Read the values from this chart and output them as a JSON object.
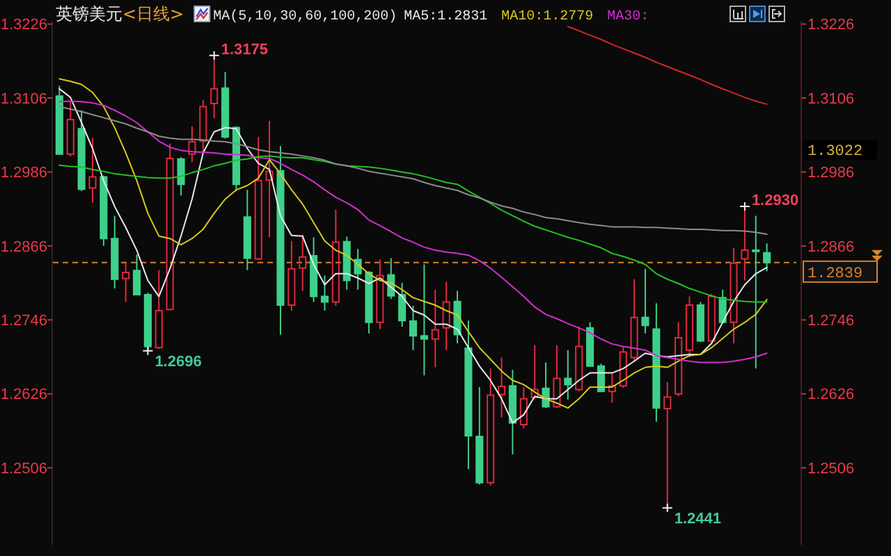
{
  "chart_data": {
    "type": "candlestick",
    "title": "英镑美元",
    "subtitle": "<日线>",
    "legend_title": "MA(5,10,30,60,100,200)",
    "legend": "top",
    "categories": [
      null,
      null,
      null,
      null,
      null,
      null,
      null,
      null,
      null,
      null,
      null,
      null,
      null,
      null,
      null,
      null,
      null,
      null,
      null,
      null,
      null,
      null,
      null,
      null,
      null,
      null,
      null,
      null,
      null,
      null,
      null,
      null,
      null,
      null,
      null,
      null,
      null,
      null,
      null,
      null,
      null,
      null,
      null,
      null,
      null,
      null,
      null,
      null,
      null,
      null,
      null,
      null,
      null,
      null,
      null,
      null,
      null,
      null,
      null,
      null,
      null,
      null,
      null,
      null,
      null
    ],
    "ohlc": [
      [
        1.3109,
        1.3126,
        1.3015,
        1.3015
      ],
      [
        1.3015,
        1.31,
        1.3011,
        1.3071
      ],
      [
        1.3056,
        1.3086,
        1.2955,
        1.2958
      ],
      [
        1.296,
        1.3041,
        1.2936,
        1.2978
      ],
      [
        1.2978,
        1.298,
        1.2866,
        1.2878
      ],
      [
        1.2878,
        1.2915,
        1.2797,
        1.2812
      ],
      [
        1.2813,
        1.2838,
        1.2775,
        1.2823
      ],
      [
        1.2826,
        1.2852,
        1.2787,
        1.2787
      ],
      [
        1.2787,
        1.279,
        1.2696,
        1.2703
      ],
      [
        1.2701,
        1.2827,
        1.2699,
        1.2761
      ],
      [
        1.2763,
        1.3032,
        1.2763,
        1.3008
      ],
      [
        1.3007,
        1.301,
        1.2948,
        1.2966
      ],
      [
        1.3015,
        1.306,
        1.3002,
        1.3035
      ],
      [
        1.3036,
        1.3103,
        1.3017,
        1.3092
      ],
      [
        1.3097,
        1.3175,
        1.3073,
        1.3121
      ],
      [
        1.3122,
        1.3148,
        1.304,
        1.3043
      ],
      [
        1.3058,
        1.306,
        1.2955,
        1.2966
      ],
      [
        1.2913,
        1.2957,
        1.2827,
        1.2846
      ],
      [
        1.2845,
        1.3043,
        1.2843,
        1.2972
      ],
      [
        1.2973,
        1.3069,
        1.288,
        1.2987
      ],
      [
        1.2988,
        1.3028,
        1.2722,
        1.277
      ],
      [
        1.277,
        1.2874,
        1.2761,
        1.2829
      ],
      [
        1.283,
        1.2884,
        1.2793,
        1.2848
      ],
      [
        1.285,
        1.288,
        1.2775,
        1.2784
      ],
      [
        1.2784,
        1.2818,
        1.2761,
        1.2775
      ],
      [
        1.2775,
        1.2925,
        1.2769,
        1.2872
      ],
      [
        1.2873,
        1.2881,
        1.2795,
        1.281
      ],
      [
        1.2844,
        1.2861,
        1.2795,
        1.2821
      ],
      [
        1.2823,
        1.2825,
        1.2724,
        1.2742
      ],
      [
        1.2742,
        1.2844,
        1.2731,
        1.2818
      ],
      [
        1.2819,
        1.2846,
        1.278,
        1.2785
      ],
      [
        1.2787,
        1.2806,
        1.2735,
        1.2745
      ],
      [
        1.2744,
        1.2769,
        1.2697,
        1.272
      ],
      [
        1.272,
        1.2836,
        1.2656,
        1.2715
      ],
      [
        1.2715,
        1.2795,
        1.2669,
        1.273
      ],
      [
        1.2733,
        1.2808,
        1.2697,
        1.2775
      ],
      [
        1.2776,
        1.2793,
        1.2708,
        1.2722
      ],
      [
        1.27,
        1.2745,
        1.2504,
        1.2558
      ],
      [
        1.2557,
        1.2637,
        1.2479,
        1.2482
      ],
      [
        1.2482,
        1.2667,
        1.2477,
        1.2624
      ],
      [
        1.2625,
        1.2685,
        1.2588,
        1.2638
      ],
      [
        1.2639,
        1.2665,
        1.2528,
        1.2579
      ],
      [
        1.2576,
        1.2637,
        1.257,
        1.2618
      ],
      [
        1.262,
        1.2705,
        1.2618,
        1.2633
      ],
      [
        1.2635,
        1.2677,
        1.2603,
        1.2605
      ],
      [
        1.2605,
        1.2705,
        1.2603,
        1.2651
      ],
      [
        1.2651,
        1.2697,
        1.2617,
        1.2641
      ],
      [
        1.2633,
        1.2735,
        1.263,
        1.2703
      ],
      [
        1.2733,
        1.2742,
        1.267,
        1.2671
      ],
      [
        1.2671,
        1.2675,
        1.263,
        1.263
      ],
      [
        1.263,
        1.266,
        1.2612,
        1.2639
      ],
      [
        1.2639,
        1.2703,
        1.2636,
        1.2694
      ],
      [
        1.2685,
        1.2812,
        1.2679,
        1.275
      ],
      [
        1.275,
        1.2829,
        1.2724,
        1.2737
      ],
      [
        1.2731,
        1.2773,
        1.2581,
        1.2603
      ],
      [
        1.2602,
        1.2645,
        1.2441,
        1.2621
      ],
      [
        1.2626,
        1.2742,
        1.2622,
        1.2717
      ],
      [
        1.2697,
        1.2784,
        1.2686,
        1.277
      ],
      [
        1.277,
        1.2775,
        1.271,
        1.2712
      ],
      [
        1.2712,
        1.2788,
        1.2708,
        1.2784
      ],
      [
        1.2782,
        1.2795,
        1.274,
        1.2742
      ],
      [
        1.2742,
        1.2863,
        1.2708,
        1.2838
      ],
      [
        1.2845,
        1.293,
        1.281,
        1.2859
      ],
      [
        1.2859,
        1.2915,
        1.2667,
        1.2857
      ],
      [
        1.2855,
        1.287,
        1.2825,
        1.2839
      ]
    ],
    "colors": [
      "#3dd08a",
      "#e0283c",
      "#3dd08a",
      "#e0283c",
      "#3dd08a",
      "#3dd08a",
      "#e0283c",
      "#3dd08a",
      "#3dd08a",
      "#e0283c",
      "#e0283c",
      "#3dd08a",
      "#e0283c",
      "#e0283c",
      "#e0283c",
      "#3dd08a",
      "#3dd08a",
      "#3dd08a",
      "#e0283c",
      "#e0283c",
      "#3dd08a",
      "#e0283c",
      "#e0283c",
      "#3dd08a",
      "#3dd08a",
      "#e0283c",
      "#3dd08a",
      "#3dd08a",
      "#3dd08a",
      "#e0283c",
      "#3dd08a",
      "#3dd08a",
      "#3dd08a",
      "#3dd08a",
      "#e0283c",
      "#e0283c",
      "#3dd08a",
      "#3dd08a",
      "#3dd08a",
      "#e0283c",
      "#e0283c",
      "#3dd08a",
      "#e0283c",
      "#e0283c",
      "#3dd08a",
      "#e0283c",
      "#3dd08a",
      "#e0283c",
      "#3dd08a",
      "#3dd08a",
      "#e0283c",
      "#e0283c",
      "#e0283c",
      "#3dd08a",
      "#3dd08a",
      "#e0283c",
      "#e0283c",
      "#e0283c",
      "#3dd08a",
      "#e0283c",
      "#3dd08a",
      "#e0283c",
      "#e0283c",
      "#3dd08a",
      "#3dd08a"
    ],
    "series": [
      {
        "type": "line",
        "name": "MA5:1.2831",
        "color": "#e8e8e8",
        "values": [
          1.3121,
          1.3107,
          1.3066,
          1.3024,
          1.2972,
          1.293,
          1.2896,
          1.2859,
          1.281,
          1.2784,
          1.2829,
          1.2882,
          1.2942,
          1.3017,
          1.3051,
          1.3058,
          1.3056,
          1.3024,
          1.3,
          1.299,
          1.2915,
          1.2883,
          1.2882,
          1.2836,
          1.2803,
          1.2821,
          1.2821,
          1.2814,
          1.2805,
          1.2814,
          1.2799,
          1.2784,
          1.2761,
          1.2754,
          1.2739,
          1.2739,
          1.2731,
          1.2701,
          1.2671,
          1.2648,
          1.2618,
          1.2579,
          1.2592,
          1.2622,
          1.2618,
          1.2618,
          1.2633,
          1.2648,
          1.266,
          1.266,
          1.266,
          1.2667,
          1.2679,
          1.2692,
          1.2688,
          1.2686,
          1.2688,
          1.269,
          1.269,
          1.2708,
          1.2742,
          1.2776,
          1.2803,
          1.2821,
          1.2831
        ]
      },
      {
        "type": "line",
        "name": "MA10:1.2779",
        "color": "#d8c81c",
        "values": [
          1.3137,
          1.3133,
          1.3128,
          1.3115,
          1.3092,
          1.3058,
          1.3017,
          1.2972,
          1.2919,
          1.2882,
          1.2878,
          1.2868,
          1.2878,
          1.2893,
          1.2919,
          1.2942,
          1.2957,
          1.2964,
          1.2976,
          1.3006,
          1.2983,
          1.2957,
          1.2934,
          1.2904,
          1.2874,
          1.2859,
          1.2851,
          1.2836,
          1.2821,
          1.281,
          1.2806,
          1.2795,
          1.2782,
          1.2776,
          1.277,
          1.2761,
          1.2754,
          1.2727,
          1.2701,
          1.2682,
          1.2663,
          1.2648,
          1.2641,
          1.2629,
          1.2618,
          1.2611,
          1.2603,
          1.2618,
          1.2637,
          1.2637,
          1.2637,
          1.2648,
          1.266,
          1.2669,
          1.2671,
          1.2669,
          1.2679,
          1.2688,
          1.269,
          1.2701,
          1.2716,
          1.2731,
          1.2742,
          1.2755,
          1.2779
        ]
      },
      {
        "type": "line",
        "name": "MA30:",
        "color": "#d22ed2",
        "values": [
          1.31,
          1.3101,
          1.31,
          1.3098,
          1.3094,
          1.3086,
          1.3077,
          1.3066,
          1.3051,
          1.3036,
          1.3026,
          1.3021,
          1.3019,
          1.3018,
          1.3017,
          1.3015,
          1.3014,
          1.3013,
          1.3009,
          1.3008,
          1.3,
          1.299,
          1.2981,
          1.297,
          1.2957,
          1.2945,
          1.2936,
          1.2925,
          1.2908,
          1.2899,
          1.2889,
          1.2879,
          1.2872,
          1.2864,
          1.2859,
          1.2856,
          1.2854,
          1.2851,
          1.2842,
          1.283,
          1.2815,
          1.28,
          1.2784,
          1.2767,
          1.2755,
          1.2748,
          1.274,
          1.2733,
          1.2725,
          1.2715,
          1.2707,
          1.2703,
          1.27,
          1.2697,
          1.2688,
          1.2685,
          1.2682,
          1.2679,
          1.2677,
          1.2677,
          1.2677,
          1.2679,
          1.2682,
          1.2686,
          1.2692
        ]
      },
      {
        "type": "line",
        "color": "#22c322",
        "values": [
          1.2997,
          1.2995,
          1.2994,
          1.299,
          1.2987,
          1.2983,
          1.2981,
          1.2979,
          1.2977,
          1.2976,
          1.2976,
          1.2979,
          1.2985,
          1.299,
          1.2996,
          1.3,
          1.3005,
          1.3007,
          1.3011,
          1.3012,
          1.301,
          1.3009,
          1.3009,
          1.3006,
          1.3003,
          1.2999,
          1.2996,
          1.2995,
          1.2994,
          1.2992,
          1.2989,
          1.2986,
          1.2983,
          1.2979,
          1.2974,
          1.2969,
          1.2966,
          1.2955,
          1.2945,
          1.2935,
          1.2924,
          1.2915,
          1.2906,
          1.2898,
          1.2892,
          1.2886,
          1.288,
          1.2875,
          1.2869,
          1.2863,
          1.2854,
          1.2849,
          1.2843,
          1.2836,
          1.2821,
          1.2812,
          1.2805,
          1.2797,
          1.2791,
          1.2785,
          1.278,
          1.2778,
          1.2776,
          1.2775,
          1.2775
        ]
      },
      {
        "type": "line",
        "color": "#8c8c8c",
        "values": [
          1.3092,
          1.3088,
          1.3084,
          1.3079,
          1.3074,
          1.3069,
          1.3064,
          1.3057,
          1.3051,
          1.3044,
          1.3041,
          1.3039,
          1.3039,
          1.3038,
          1.3036,
          1.3035,
          1.3032,
          1.3027,
          1.3022,
          1.3019,
          1.3017,
          1.3015,
          1.3012,
          1.3009,
          1.3005,
          1.2999,
          1.2996,
          1.2992,
          1.2987,
          1.2984,
          1.2981,
          1.2978,
          1.2975,
          1.2969,
          1.2964,
          1.296,
          1.2956,
          1.2949,
          1.2944,
          1.2937,
          1.2931,
          1.2927,
          1.2921,
          1.2917,
          1.2912,
          1.291,
          1.2907,
          1.2904,
          1.2901,
          1.2899,
          1.2897,
          1.2897,
          1.2897,
          1.2896,
          1.2896,
          1.2895,
          1.2894,
          1.2893,
          1.2893,
          1.2892,
          1.2891,
          1.2891,
          1.289,
          1.2888,
          1.2885
        ]
      },
      {
        "type": "line",
        "color": "#d0281e",
        "values": [
          null,
          null,
          null,
          null,
          null,
          null,
          null,
          null,
          null,
          null,
          null,
          null,
          null,
          null,
          null,
          null,
          null,
          null,
          null,
          null,
          null,
          null,
          null,
          null,
          null,
          null,
          null,
          null,
          null,
          null,
          null,
          null,
          null,
          null,
          null,
          null,
          null,
          null,
          null,
          null,
          null,
          null,
          null,
          null,
          null,
          null,
          1.3222,
          1.3215,
          1.3208,
          1.3201,
          1.3193,
          1.3186,
          1.3179,
          1.3172,
          1.3164,
          1.3157,
          1.315,
          1.3143,
          1.3136,
          1.3128,
          1.3121,
          1.3114,
          1.3107,
          1.3101,
          1.3096
        ]
      }
    ],
    "ylim": [
      1.2381,
      1.3226
    ],
    "yticks": [
      1.3226,
      1.3106,
      1.2986,
      1.2866,
      1.2746,
      1.2626,
      1.2506
    ],
    "y2lim": [
      1.2381,
      1.3226
    ],
    "y2ticks": [
      1.3226,
      1.3106,
      1.2986,
      1.2866,
      1.2746,
      1.2626,
      1.2506
    ],
    "tick_labels": "y",
    "ref_lines": [
      {
        "axis": "y",
        "value": 1.2839,
        "label": "1.2839",
        "color": "#d9822b",
        "line_style": "dashed"
      }
    ],
    "annotations": [
      "1.3175",
      "1.2696",
      "1.2930",
      "1.2441",
      "1.3022"
    ]
  }
}
